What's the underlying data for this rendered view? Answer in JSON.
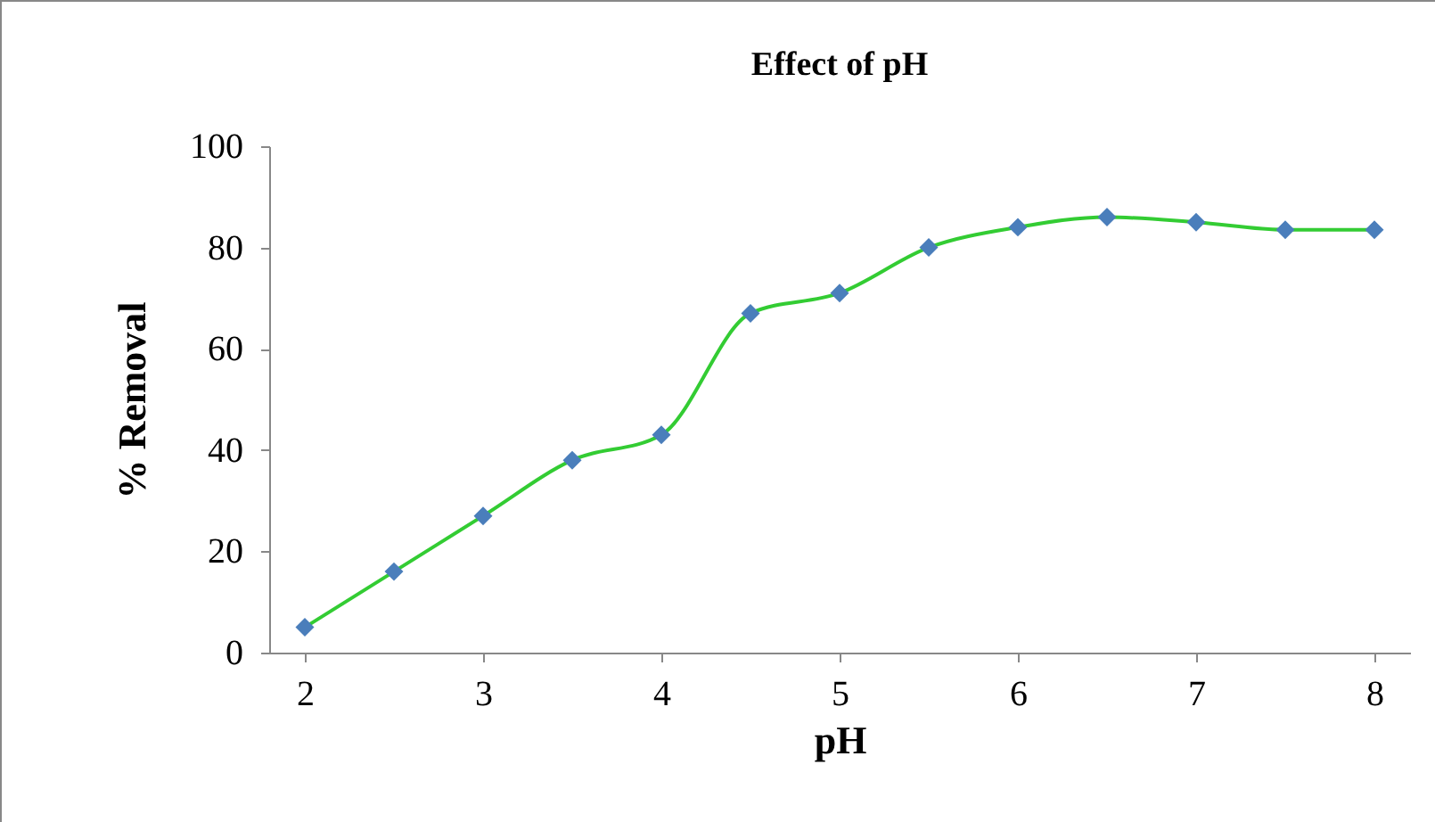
{
  "chart_data": {
    "type": "line",
    "title": "Effect of pH",
    "xlabel": "pH",
    "ylabel": "% Removal",
    "x": [
      2,
      2.5,
      3,
      3.5,
      4,
      4.5,
      5,
      5.5,
      6,
      6.5,
      7,
      7.5,
      8
    ],
    "series": [
      {
        "color": "#33cc33",
        "values": [
          5,
          16,
          27,
          38,
          43,
          67,
          71,
          80,
          84,
          86,
          85,
          83.5,
          83.5
        ]
      }
    ],
    "marker": "diamond",
    "xlim": [
      1.8,
      8.2
    ],
    "xticks": [
      2,
      3,
      4,
      5,
      6,
      7,
      8
    ],
    "ylim": [
      0,
      100
    ],
    "yticks": [
      0,
      20,
      40,
      60,
      80,
      100
    ],
    "grid": false,
    "legend": false
  }
}
